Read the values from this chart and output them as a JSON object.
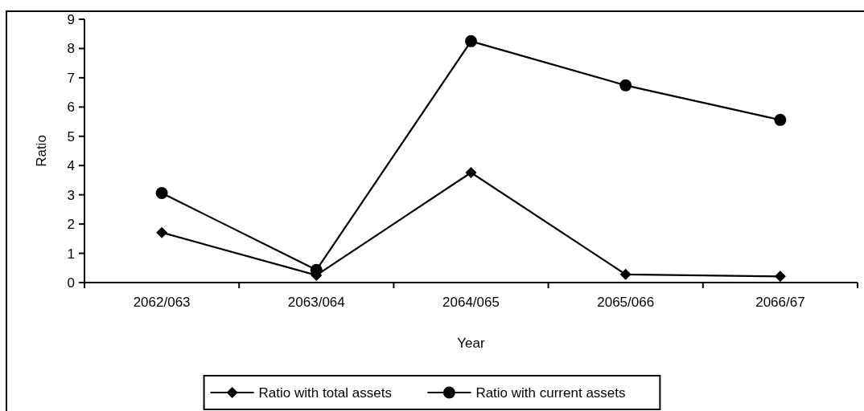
{
  "chart_data": {
    "type": "line",
    "xlabel": "Year",
    "ylabel": "Ratio",
    "categories": [
      "2062/063",
      "2063/064",
      "2064/065",
      "2065/066",
      "2066/67"
    ],
    "ylim": [
      0,
      9
    ],
    "yticks": [
      0,
      1,
      2,
      3,
      4,
      5,
      6,
      7,
      8,
      9
    ],
    "grid": false,
    "legend": "bottom",
    "series": [
      {
        "name": "Ratio with total assets",
        "color": "#000000",
        "marker": "diamond",
        "values": [
          1.71,
          0.25,
          3.76,
          0.28,
          0.21
        ]
      },
      {
        "name": "Ratio with current assets",
        "color": "#000000",
        "marker": "circle",
        "values": [
          3.06,
          0.43,
          8.25,
          6.74,
          5.56
        ]
      }
    ]
  }
}
